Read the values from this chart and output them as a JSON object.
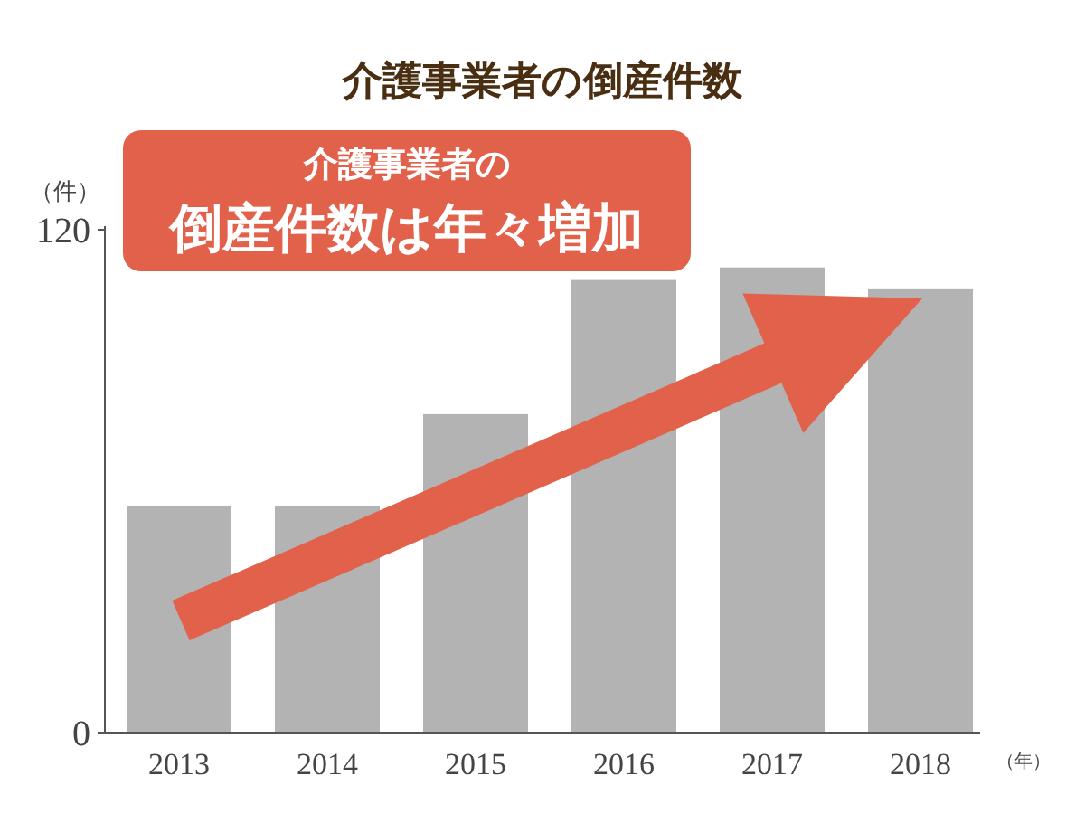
{
  "chart_data": {
    "type": "bar",
    "title": "介護事業者の倒産件数",
    "ylabel": "（件）",
    "xlabel": "（年）",
    "categories": [
      "2013",
      "2014",
      "2015",
      "2016",
      "2017",
      "2018"
    ],
    "values": [
      54,
      54,
      76,
      108,
      111,
      106
    ],
    "color": "#b3b3b3",
    "ylim": [
      0,
      120
    ],
    "yticks": [
      0,
      120
    ],
    "annotations": [
      "介護事業者の",
      "倒産件数は年々増加"
    ]
  }
}
